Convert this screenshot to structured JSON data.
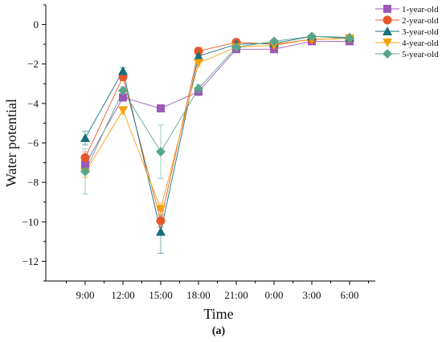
{
  "chart_data": {
    "type": "line",
    "title": "",
    "xlabel": "Time",
    "ylabel": "Water potential",
    "caption": "(a)",
    "categories": [
      "9:00",
      "12:00",
      "15:00",
      "18:00",
      "21:00",
      "0:00",
      "3:00",
      "6:00"
    ],
    "ylim": [
      -13,
      1
    ],
    "yticks": [
      0,
      -2,
      -4,
      -6,
      -8,
      -10,
      -12
    ],
    "legend_position": "top-right",
    "grid": false,
    "series": [
      {
        "name": "1-year-old",
        "color": "#9b59b6",
        "marker": "square",
        "values": [
          -7.1,
          -3.7,
          -4.25,
          -3.4,
          -1.25,
          -1.25,
          -0.85,
          -0.85
        ],
        "errors": [
          0.3,
          0.15,
          0.1,
          0.2,
          0.1,
          0.1,
          0.1,
          0.1
        ]
      },
      {
        "name": "2-year-old",
        "color": "#e8572a",
        "marker": "circle",
        "values": [
          -6.75,
          -2.65,
          -9.95,
          -1.35,
          -0.9,
          -1.0,
          -0.75,
          -0.7
        ],
        "errors": [
          0.3,
          0.2,
          0.3,
          0.2,
          0.1,
          0.1,
          0.1,
          0.1
        ]
      },
      {
        "name": "3-year-old",
        "color": "#166f7a",
        "marker": "triangle-up",
        "values": [
          -5.75,
          -2.35,
          -10.5,
          -1.6,
          -1.0,
          -0.95,
          -0.6,
          -0.65
        ],
        "errors": [
          0.35,
          0.15,
          1.1,
          0.2,
          0.1,
          0.1,
          0.1,
          0.1
        ]
      },
      {
        "name": "4-year-old",
        "color": "#f5a10c",
        "marker": "triangle-down",
        "values": [
          -7.5,
          -4.35,
          -9.35,
          -1.95,
          -1.15,
          -1.05,
          -0.75,
          -0.7
        ],
        "errors": [
          0.25,
          0.2,
          0.3,
          0.2,
          0.1,
          0.1,
          0.1,
          0.1
        ]
      },
      {
        "name": "5-year-old",
        "color": "#5aa58a",
        "marker": "diamond",
        "values": [
          -7.45,
          -3.35,
          -6.45,
          -3.25,
          -1.15,
          -0.85,
          -0.6,
          -0.7
        ],
        "errors": [
          1.15,
          0.2,
          1.35,
          0.2,
          0.1,
          0.1,
          0.1,
          0.1
        ]
      }
    ]
  }
}
